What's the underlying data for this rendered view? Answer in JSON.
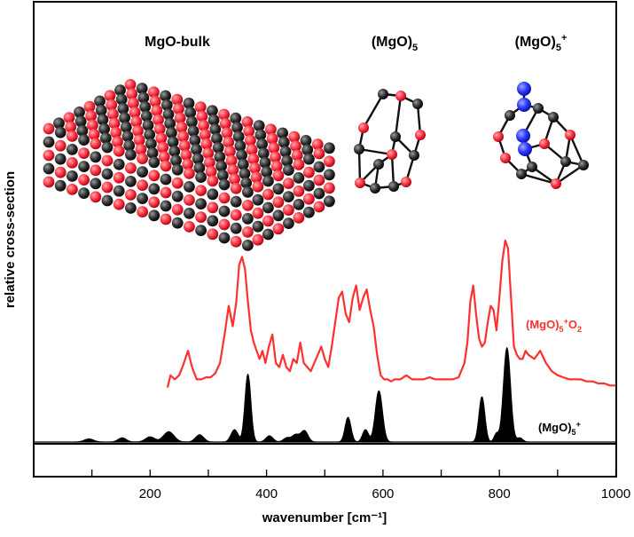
{
  "chart_data": {
    "type": "line",
    "title": "",
    "xlabel": "wavenumber [cm⁻¹]",
    "ylabel": "relative cross-section",
    "xlim": [
      0,
      1000
    ],
    "x_ticks": [
      200,
      400,
      600,
      800,
      1000
    ],
    "grid": false,
    "structures": [
      {
        "label": "MgO-bulk",
        "kind": "bulk-lattice"
      },
      {
        "label_main": "(MgO)",
        "label_sub": "5",
        "label_sup": "",
        "kind": "cluster-neutral"
      },
      {
        "label_main": "(MgO)",
        "label_sub": "5",
        "label_sup": "+",
        "kind": "cluster-cation"
      }
    ],
    "series": [
      {
        "name_main": "(MgO)",
        "name_sub": "5",
        "name_sup": "+",
        "name_tail": "O",
        "name_tail_sub": "2",
        "style": "line",
        "color": "#ff3030",
        "x": [
          230,
          235,
          242,
          250,
          258,
          265,
          272,
          280,
          288,
          296,
          304,
          312,
          320,
          328,
          335,
          342,
          348,
          353,
          358,
          363,
          368,
          373,
          378,
          383,
          388,
          393,
          398,
          404,
          410,
          416,
          422,
          428,
          434,
          440,
          446,
          452,
          458,
          464,
          470,
          476,
          482,
          488,
          494,
          500,
          506,
          512,
          518,
          524,
          530,
          536,
          542,
          548,
          554,
          560,
          566,
          572,
          578,
          584,
          590,
          596,
          602,
          608,
          614,
          620,
          630,
          640,
          650,
          660,
          670,
          680,
          690,
          700,
          710,
          720,
          730,
          740,
          745,
          750,
          755,
          760,
          765,
          770,
          775,
          780,
          785,
          790,
          795,
          800,
          805,
          810,
          815,
          820,
          825,
          830,
          835,
          840,
          845,
          850,
          860,
          870,
          880,
          890,
          900,
          910,
          920,
          930,
          940,
          950,
          960,
          970,
          980,
          990,
          1000
        ],
        "y": [
          0.08,
          0.14,
          0.12,
          0.14,
          0.2,
          0.26,
          0.18,
          0.12,
          0.12,
          0.13,
          0.13,
          0.15,
          0.2,
          0.34,
          0.48,
          0.38,
          0.5,
          0.68,
          0.72,
          0.66,
          0.5,
          0.36,
          0.3,
          0.26,
          0.22,
          0.26,
          0.2,
          0.28,
          0.34,
          0.2,
          0.18,
          0.24,
          0.18,
          0.16,
          0.22,
          0.2,
          0.3,
          0.2,
          0.18,
          0.16,
          0.2,
          0.24,
          0.28,
          0.22,
          0.18,
          0.28,
          0.4,
          0.52,
          0.55,
          0.44,
          0.4,
          0.52,
          0.58,
          0.46,
          0.52,
          0.56,
          0.46,
          0.38,
          0.24,
          0.14,
          0.12,
          0.12,
          0.11,
          0.12,
          0.12,
          0.14,
          0.12,
          0.12,
          0.12,
          0.13,
          0.12,
          0.12,
          0.12,
          0.12,
          0.13,
          0.2,
          0.3,
          0.5,
          0.58,
          0.44,
          0.32,
          0.28,
          0.3,
          0.4,
          0.48,
          0.46,
          0.36,
          0.52,
          0.7,
          0.8,
          0.76,
          0.52,
          0.28,
          0.24,
          0.22,
          0.22,
          0.26,
          0.24,
          0.22,
          0.26,
          0.2,
          0.16,
          0.14,
          0.13,
          0.12,
          0.12,
          0.12,
          0.11,
          0.11,
          0.1,
          0.1,
          0.09,
          0.09
        ]
      },
      {
        "name_main": "(MgO)",
        "name_sub": "5",
        "name_sup": "+",
        "name_tail": "",
        "name_tail_sub": "",
        "style": "filled-peaks",
        "color": "#000000",
        "peaks": [
          {
            "x": 95,
            "h": 0.015,
            "w": 8
          },
          {
            "x": 152,
            "h": 0.02,
            "w": 7
          },
          {
            "x": 200,
            "h": 0.025,
            "w": 8
          },
          {
            "x": 232,
            "h": 0.05,
            "w": 9
          },
          {
            "x": 285,
            "h": 0.035,
            "w": 7
          },
          {
            "x": 345,
            "h": 0.06,
            "w": 6
          },
          {
            "x": 368,
            "h": 0.33,
            "w": 5
          },
          {
            "x": 405,
            "h": 0.03,
            "w": 6
          },
          {
            "x": 435,
            "h": 0.02,
            "w": 6
          },
          {
            "x": 450,
            "h": 0.035,
            "w": 6
          },
          {
            "x": 465,
            "h": 0.055,
            "w": 6
          },
          {
            "x": 540,
            "h": 0.12,
            "w": 5
          },
          {
            "x": 570,
            "h": 0.06,
            "w": 5
          },
          {
            "x": 593,
            "h": 0.25,
            "w": 6
          },
          {
            "x": 770,
            "h": 0.22,
            "w": 5
          },
          {
            "x": 795,
            "h": 0.04,
            "w": 4
          },
          {
            "x": 813,
            "h": 0.46,
            "w": 6
          },
          {
            "x": 835,
            "h": 0.02,
            "w": 5
          }
        ]
      }
    ]
  }
}
